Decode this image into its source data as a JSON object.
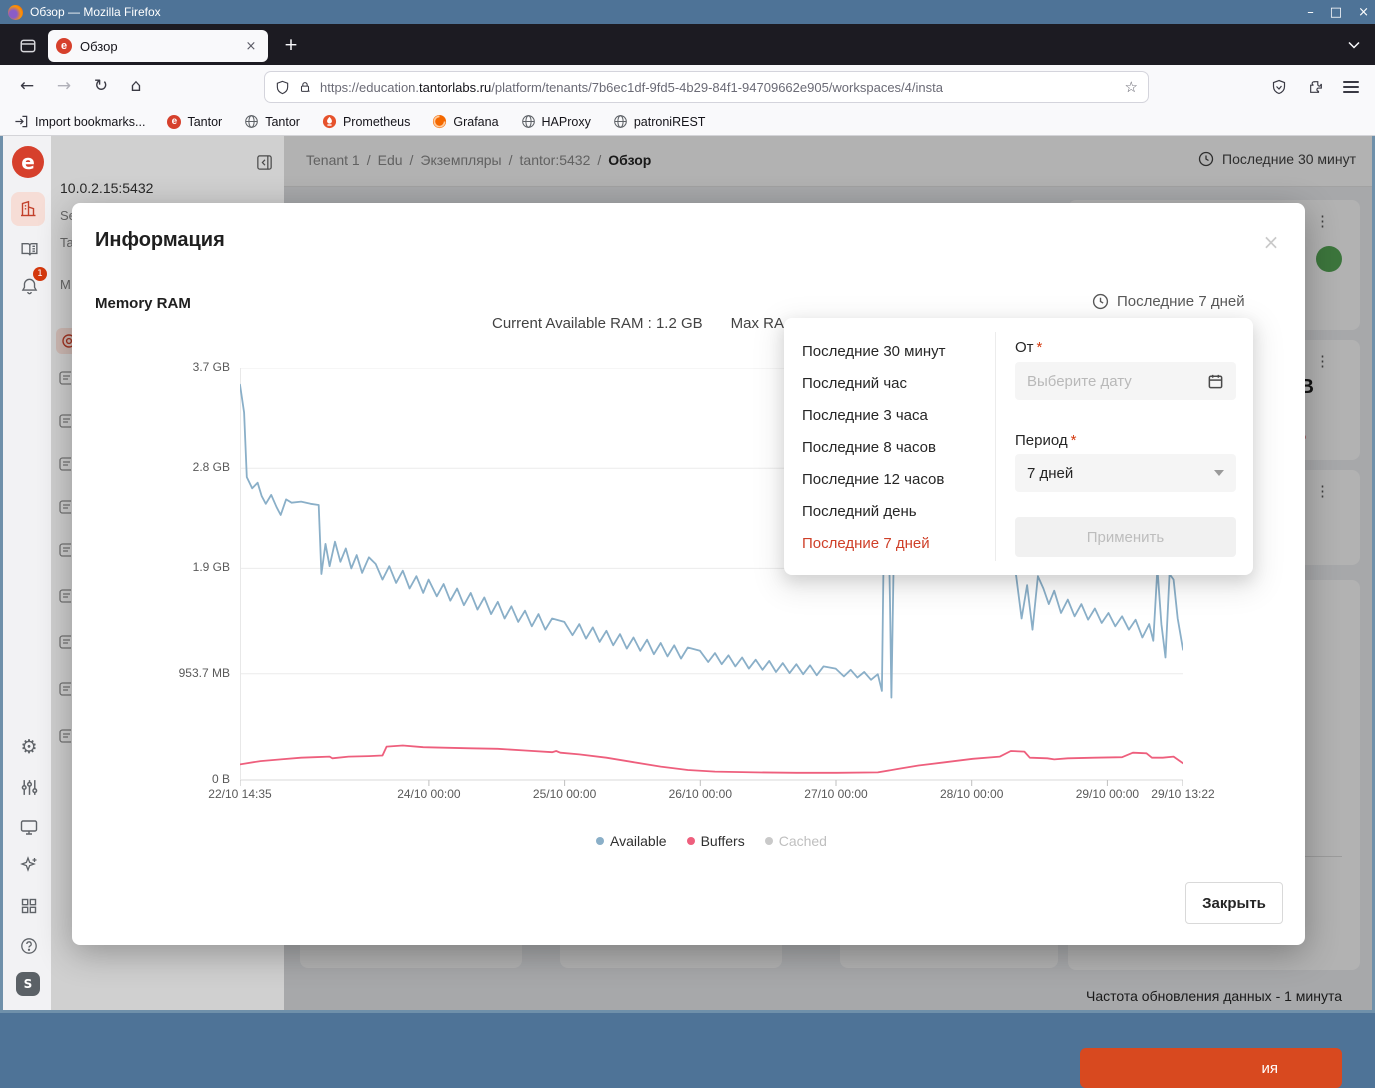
{
  "browser": {
    "window_title": "Обзор — Mozilla Firefox",
    "tab_title": "Обзор",
    "url_prefix": "https://education.",
    "url_domain": "tantorlabs.ru",
    "url_path": "/platform/tenants/7b6ec1df-9fd5-4b29-84f1-94709662e905/workspaces/4/insta",
    "bookmarks": [
      {
        "label": "Import bookmarks...",
        "icon": "import"
      },
      {
        "label": "Tantor",
        "icon": "tantor"
      },
      {
        "label": "Tantor",
        "icon": "globe"
      },
      {
        "label": "Prometheus",
        "icon": "prometheus"
      },
      {
        "label": "Grafana",
        "icon": "grafana"
      },
      {
        "label": "HAProxy",
        "icon": "globe"
      },
      {
        "label": "patroniREST",
        "icon": "globe"
      }
    ]
  },
  "glyphs": {
    "minimize": "–",
    "maximize": "□",
    "close": "×",
    "back": "←",
    "forward": "→",
    "reload": "↻",
    "home": "⌂",
    "star": "☆",
    "dots": "⋮",
    "new_tab": "+",
    "tab_close": "×",
    "modal_close": "×",
    "badge": "1",
    "avatar": "S",
    "gear": "⚙",
    "logo": "e"
  },
  "app": {
    "breadcrumb": [
      "Tenant 1",
      "Edu",
      "Экземпляры",
      "tantor:5432",
      "Обзор"
    ],
    "global_time_range": "Последние 30 минут",
    "sidebar_host": "10.0.2.15:5432",
    "sidebar_fragments": [
      "Se",
      "Ta",
      "M"
    ],
    "cards": {
      "mb_fragment": "MB",
      "percent_fragment": "0%",
      "dash_fragment": "-",
      "value_fragment": "lue:",
      "orange_button_fragment": "ия",
      "refresh_note": "Частота обновления данных - 1 минута"
    }
  },
  "modal": {
    "title": "Информация",
    "section_title": "Memory RAM",
    "time_range": "Последние 7 дней",
    "close_label": "Закрыть"
  },
  "dropdown": {
    "items": [
      "Последние 30 минут",
      "Последний час",
      "Последние 3 часа",
      "Последние 8 часов",
      "Последние 12 часов",
      "Последний день",
      "Последние 7 дней"
    ],
    "selected_index": 6,
    "from_label": "От",
    "required_mark": "*",
    "date_placeholder": "Выберите дату",
    "period_label": "Период",
    "period_value": "7 дней",
    "apply_label": "Применить"
  },
  "chart_data": {
    "type": "line",
    "title": "Current Available RAM : 1.2 GB",
    "title_secondary_visible": "Max RA",
    "grid": true,
    "legend_position": "bottom",
    "x_range_days": [
      0,
      6.949
    ],
    "y_range_gb": [
      0,
      3.7
    ],
    "y_ticks": [
      {
        "value": 3.7,
        "label": "3.7 GB"
      },
      {
        "value": 2.8,
        "label": "2.8 GB"
      },
      {
        "value": 1.9,
        "label": "1.9 GB"
      },
      {
        "value": 0.9537,
        "label": "953.7 MB"
      },
      {
        "value": 0,
        "label": "0 B"
      }
    ],
    "x_ticks": [
      {
        "t": 0,
        "label": "22/10 14:35"
      },
      {
        "t": 1.392,
        "label": "24/10 00:00"
      },
      {
        "t": 2.392,
        "label": "25/10 00:00"
      },
      {
        "t": 3.392,
        "label": "26/10 00:00"
      },
      {
        "t": 4.392,
        "label": "27/10 00:00"
      },
      {
        "t": 5.392,
        "label": "28/10 00:00"
      },
      {
        "t": 6.392,
        "label": "29/10 00:00"
      },
      {
        "t": 6.949,
        "label": "29/10 13:22"
      }
    ],
    "series": [
      {
        "name": "Available",
        "color": "#8aafc8",
        "disabled": false,
        "points": [
          [
            0,
            3.55
          ],
          [
            0.03,
            3.3
          ],
          [
            0.05,
            2.72
          ],
          [
            0.09,
            2.62
          ],
          [
            0.13,
            2.67
          ],
          [
            0.16,
            2.55
          ],
          [
            0.19,
            2.48
          ],
          [
            0.23,
            2.56
          ],
          [
            0.27,
            2.45
          ],
          [
            0.3,
            2.38
          ],
          [
            0.34,
            2.52
          ],
          [
            0.38,
            2.49
          ],
          [
            0.45,
            2.5
          ],
          [
            0.52,
            2.48
          ],
          [
            0.58,
            2.47
          ],
          [
            0.6,
            1.85
          ],
          [
            0.63,
            2.12
          ],
          [
            0.66,
            1.92
          ],
          [
            0.7,
            2.14
          ],
          [
            0.74,
            1.96
          ],
          [
            0.78,
            2.08
          ],
          [
            0.82,
            1.9
          ],
          [
            0.86,
            2.02
          ],
          [
            0.9,
            1.86
          ],
          [
            0.95,
            2.0
          ],
          [
            1.0,
            1.94
          ],
          [
            1.05,
            1.8
          ],
          [
            1.1,
            1.92
          ],
          [
            1.15,
            1.77
          ],
          [
            1.2,
            1.88
          ],
          [
            1.25,
            1.72
          ],
          [
            1.3,
            1.83
          ],
          [
            1.35,
            1.68
          ],
          [
            1.39,
            1.8
          ],
          [
            1.45,
            1.65
          ],
          [
            1.5,
            1.76
          ],
          [
            1.55,
            1.61
          ],
          [
            1.6,
            1.72
          ],
          [
            1.65,
            1.57
          ],
          [
            1.7,
            1.68
          ],
          [
            1.75,
            1.53
          ],
          [
            1.8,
            1.64
          ],
          [
            1.85,
            1.49
          ],
          [
            1.9,
            1.6
          ],
          [
            1.95,
            1.45
          ],
          [
            2.0,
            1.56
          ],
          [
            2.05,
            1.42
          ],
          [
            2.1,
            1.52
          ],
          [
            2.15,
            1.38
          ],
          [
            2.2,
            1.49
          ],
          [
            2.25,
            1.35
          ],
          [
            2.3,
            1.45
          ],
          [
            2.39,
            1.42
          ],
          [
            2.45,
            1.3
          ],
          [
            2.5,
            1.4
          ],
          [
            2.55,
            1.27
          ],
          [
            2.6,
            1.37
          ],
          [
            2.65,
            1.24
          ],
          [
            2.7,
            1.34
          ],
          [
            2.75,
            1.21
          ],
          [
            2.8,
            1.31
          ],
          [
            2.85,
            1.18
          ],
          [
            2.9,
            1.28
          ],
          [
            2.95,
            1.16
          ],
          [
            3.0,
            1.26
          ],
          [
            3.05,
            1.13
          ],
          [
            3.1,
            1.23
          ],
          [
            3.15,
            1.11
          ],
          [
            3.2,
            1.21
          ],
          [
            3.25,
            1.09
          ],
          [
            3.3,
            1.19
          ],
          [
            3.39,
            1.16
          ],
          [
            3.45,
            1.06
          ],
          [
            3.5,
            1.14
          ],
          [
            3.55,
            1.04
          ],
          [
            3.6,
            1.12
          ],
          [
            3.65,
            1.02
          ],
          [
            3.7,
            1.1
          ],
          [
            3.75,
            1.0
          ],
          [
            3.8,
            1.08
          ],
          [
            3.85,
            0.99
          ],
          [
            3.9,
            1.07
          ],
          [
            3.95,
            0.97
          ],
          [
            4.0,
            1.05
          ],
          [
            4.05,
            0.96
          ],
          [
            4.1,
            1.04
          ],
          [
            4.15,
            0.95
          ],
          [
            4.2,
            1.03
          ],
          [
            4.25,
            0.94
          ],
          [
            4.3,
            1.02
          ],
          [
            4.39,
            1.0
          ],
          [
            4.45,
            0.93
          ],
          [
            4.5,
            0.99
          ],
          [
            4.55,
            0.92
          ],
          [
            4.6,
            0.97
          ],
          [
            4.65,
            0.9
          ],
          [
            4.7,
            0.95
          ],
          [
            4.73,
            0.8
          ],
          [
            4.76,
            3.65
          ],
          [
            4.79,
            1.6
          ],
          [
            4.8,
            0.74
          ],
          [
            4.82,
            2.2
          ],
          [
            4.84,
            3.4
          ],
          [
            4.86,
            2.7
          ],
          [
            4.9,
            2.5
          ],
          [
            5.0,
            2.6
          ],
          [
            5.1,
            2.45
          ],
          [
            5.2,
            2.55
          ],
          [
            5.3,
            2.4
          ],
          [
            5.4,
            2.5
          ],
          [
            5.5,
            2.35
          ],
          [
            5.6,
            2.2
          ],
          [
            5.68,
            2.05
          ],
          [
            5.72,
            1.83
          ],
          [
            5.76,
            1.45
          ],
          [
            5.8,
            1.75
          ],
          [
            5.84,
            1.35
          ],
          [
            5.88,
            1.83
          ],
          [
            5.92,
            1.72
          ],
          [
            5.96,
            1.58
          ],
          [
            6.0,
            1.7
          ],
          [
            6.05,
            1.5
          ],
          [
            6.1,
            1.62
          ],
          [
            6.15,
            1.47
          ],
          [
            6.2,
            1.58
          ],
          [
            6.25,
            1.44
          ],
          [
            6.3,
            1.54
          ],
          [
            6.35,
            1.41
          ],
          [
            6.4,
            1.5
          ],
          [
            6.45,
            1.38
          ],
          [
            6.5,
            1.47
          ],
          [
            6.55,
            1.35
          ],
          [
            6.6,
            1.44
          ],
          [
            6.65,
            1.28
          ],
          [
            6.7,
            1.4
          ],
          [
            6.73,
            1.25
          ],
          [
            6.76,
            1.9
          ],
          [
            6.79,
            1.4
          ],
          [
            6.82,
            1.1
          ],
          [
            6.85,
            1.85
          ],
          [
            6.88,
            1.8
          ],
          [
            6.91,
            1.45
          ],
          [
            6.95,
            1.17
          ]
        ]
      },
      {
        "name": "Buffers",
        "color": "#ee5f7d",
        "disabled": false,
        "points": [
          [
            0,
            0.14
          ],
          [
            0.15,
            0.17
          ],
          [
            0.3,
            0.185
          ],
          [
            0.45,
            0.2
          ],
          [
            0.55,
            0.205
          ],
          [
            0.66,
            0.21
          ],
          [
            0.68,
            0.195
          ],
          [
            0.8,
            0.21
          ],
          [
            0.95,
            0.215
          ],
          [
            1.05,
            0.22
          ],
          [
            1.08,
            0.3
          ],
          [
            1.2,
            0.31
          ],
          [
            1.35,
            0.295
          ],
          [
            1.5,
            0.29
          ],
          [
            1.7,
            0.285
          ],
          [
            1.9,
            0.28
          ],
          [
            2.1,
            0.265
          ],
          [
            2.3,
            0.25
          ],
          [
            2.33,
            0.26
          ],
          [
            2.36,
            0.245
          ],
          [
            2.5,
            0.23
          ],
          [
            2.7,
            0.2
          ],
          [
            2.9,
            0.16
          ],
          [
            3.1,
            0.12
          ],
          [
            3.3,
            0.09
          ],
          [
            3.5,
            0.075
          ],
          [
            3.8,
            0.068
          ],
          [
            4.1,
            0.065
          ],
          [
            4.4,
            0.065
          ],
          [
            4.7,
            0.068
          ],
          [
            4.85,
            0.1
          ],
          [
            5.0,
            0.13
          ],
          [
            5.2,
            0.16
          ],
          [
            5.4,
            0.19
          ],
          [
            5.6,
            0.21
          ],
          [
            5.68,
            0.26
          ],
          [
            5.78,
            0.255
          ],
          [
            5.82,
            0.2
          ],
          [
            5.95,
            0.195
          ],
          [
            6.0,
            0.185
          ],
          [
            6.1,
            0.195
          ],
          [
            6.3,
            0.2
          ],
          [
            6.5,
            0.205
          ],
          [
            6.58,
            0.245
          ],
          [
            6.68,
            0.24
          ],
          [
            6.72,
            0.2
          ],
          [
            6.8,
            0.2
          ],
          [
            6.88,
            0.21
          ],
          [
            6.95,
            0.15
          ]
        ]
      },
      {
        "name": "Cached",
        "color": "#c9c9c9",
        "disabled": true,
        "points": []
      }
    ]
  },
  "colors": {
    "accent_red": "#cf4029",
    "titlebar_blue": "#4e7397",
    "window_border_blue": "#6f90aa",
    "status_green": "#57a857",
    "status_red": "#cf1322",
    "series_available": "#8aafc8",
    "series_buffers": "#ee5f7d"
  }
}
